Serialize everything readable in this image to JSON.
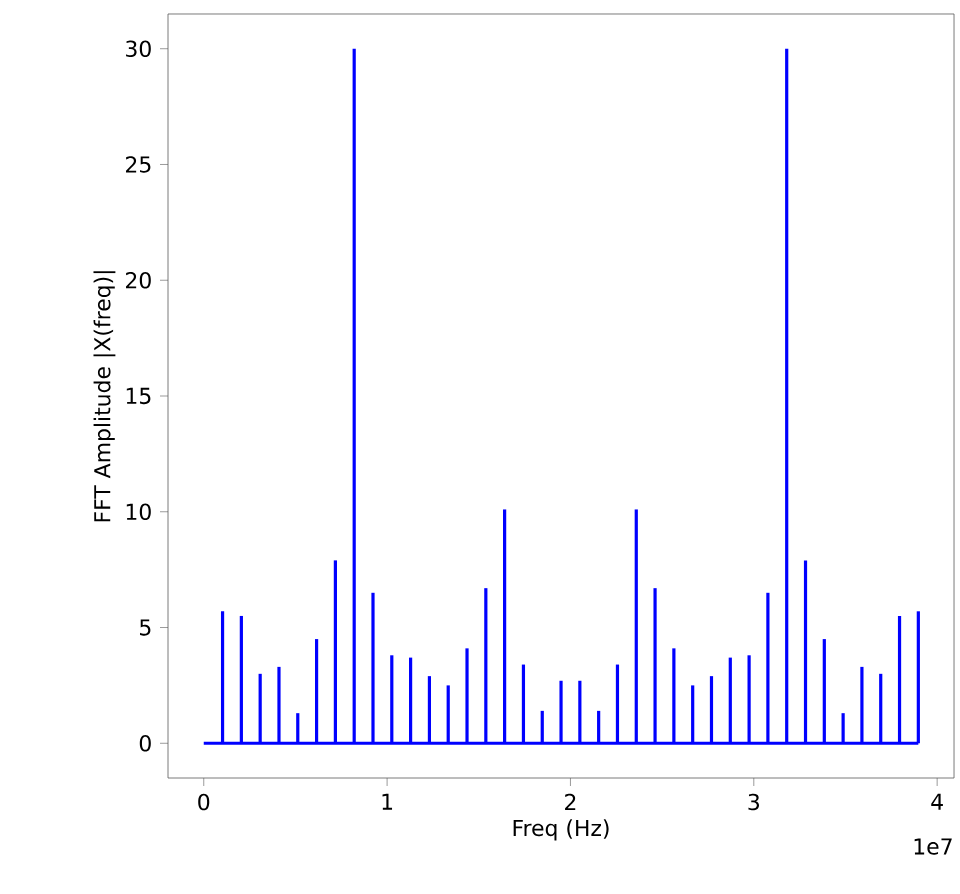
{
  "chart_data": {
    "type": "bar",
    "xlabel": "Freq (Hz)",
    "ylabel": "FFT Amplitude |X(freq)|",
    "color": "#0000ff",
    "marker": "none",
    "x": [
      0,
      0.1026,
      0.2051,
      0.3077,
      0.4103,
      0.5128,
      0.6154,
      0.7179,
      0.8205,
      0.9231,
      1.0256,
      1.1282,
      1.2308,
      1.3333,
      1.4359,
      1.5385,
      1.641,
      1.7436,
      1.8462,
      1.9487,
      2.0513,
      2.1538,
      2.2564,
      2.359,
      2.4615,
      2.5641,
      2.6667,
      2.7692,
      2.8718,
      2.9744,
      3.0769,
      3.1795,
      3.2821,
      3.3846,
      3.4872,
      3.5897,
      3.6923,
      3.7949,
      3.8974
    ],
    "values": [
      0,
      5.7,
      5.5,
      3.0,
      3.3,
      1.3,
      4.5,
      7.9,
      30,
      6.5,
      3.8,
      3.7,
      2.9,
      2.5,
      4.1,
      6.7,
      10.1,
      3.4,
      1.4,
      2.7,
      2.7,
      1.4,
      3.4,
      10.1,
      6.7,
      4.1,
      2.5,
      2.9,
      3.7,
      3.8,
      6.5,
      30,
      7.9,
      4.5,
      1.3,
      3.3,
      3.0,
      5.5,
      5.7
    ],
    "xlim": [
      -0.195,
      4.092
    ],
    "ylim": [
      -1.5,
      31.5
    ],
    "xticks": [
      0,
      1,
      2,
      3,
      4
    ],
    "yticks": [
      0,
      5,
      10,
      15,
      20,
      25,
      30
    ],
    "ref_lines": [
      {
        "axis": "y",
        "value": 0,
        "color": "#0000ff"
      }
    ],
    "annotations": [
      "1e7"
    ]
  }
}
